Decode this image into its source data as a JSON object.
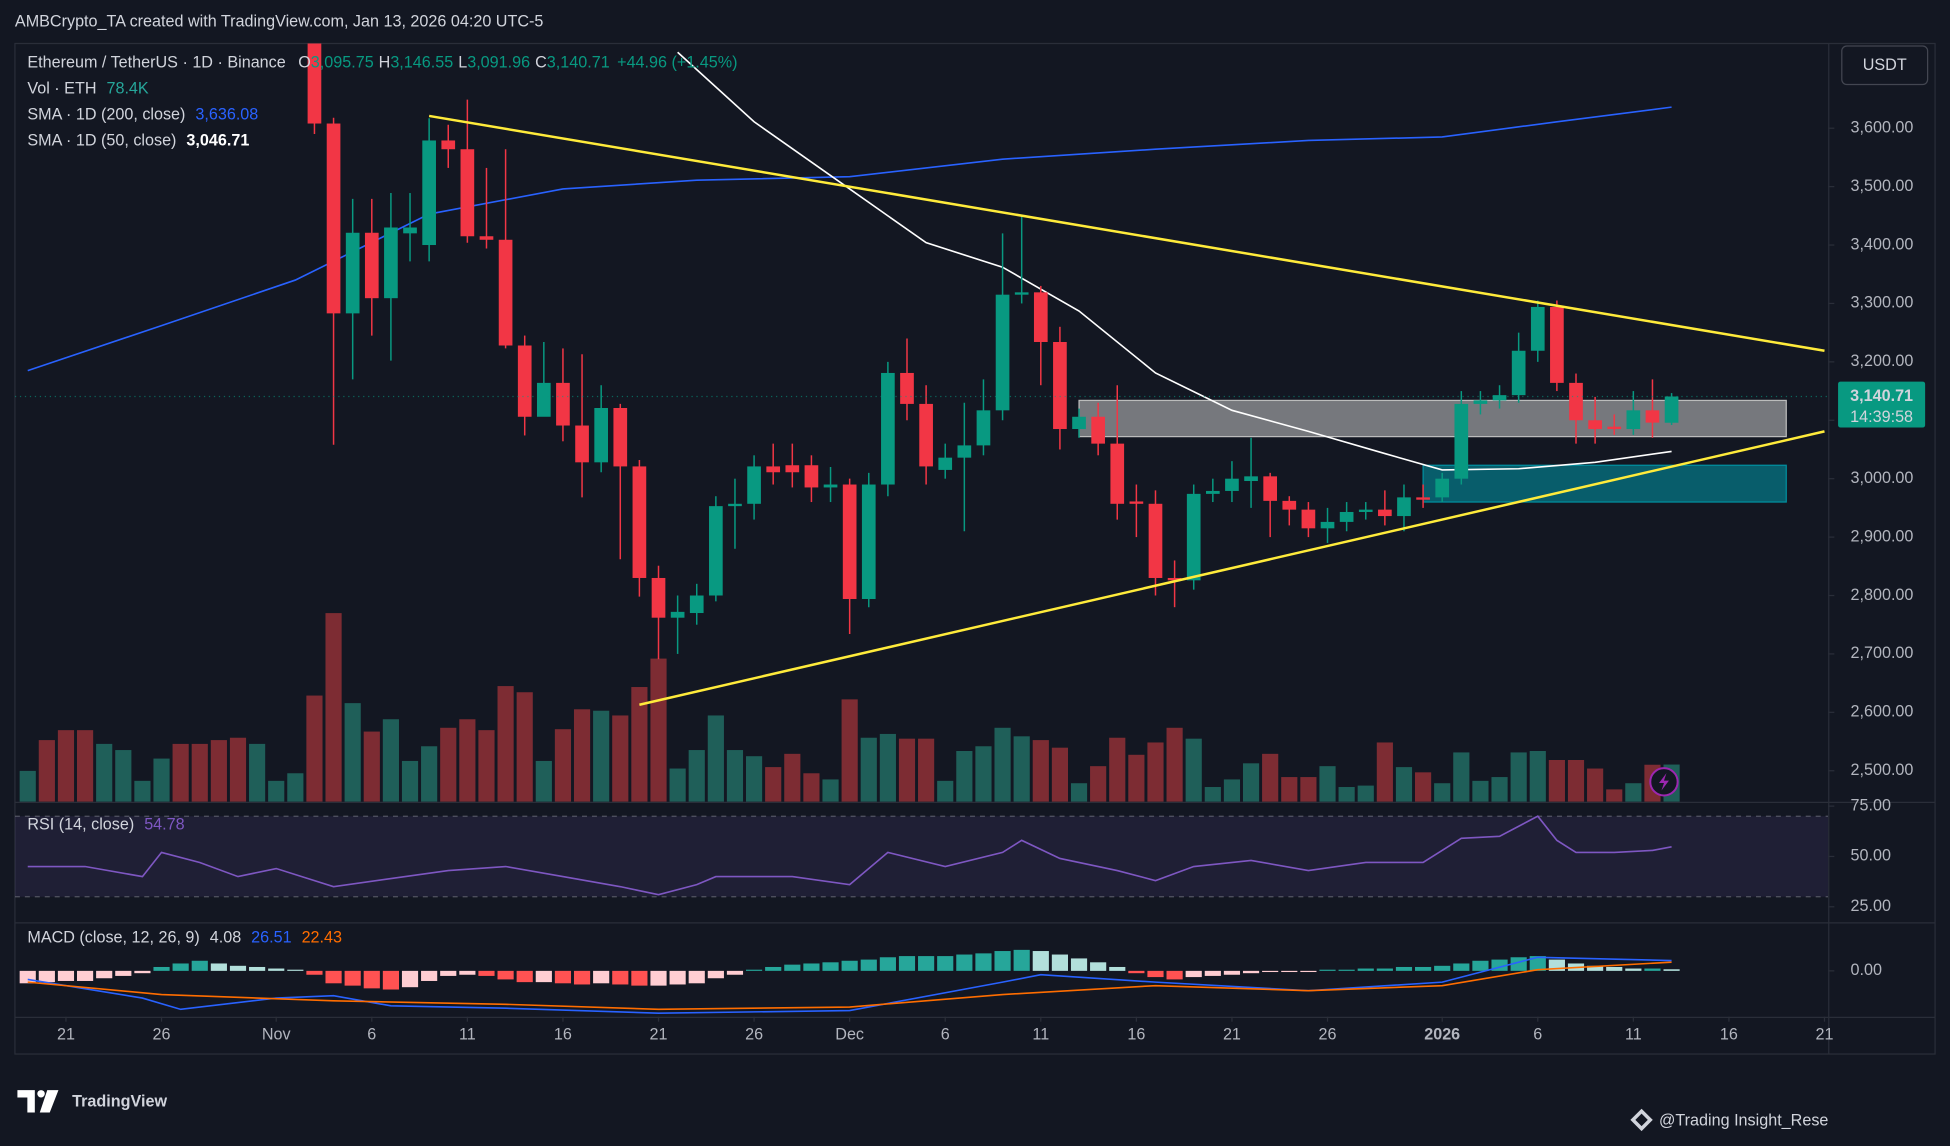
{
  "header": {
    "attribution": "AMBCrypto_TA created with TradingView.com, Jan 13, 2026 04:20 UTC-5"
  },
  "footer": {
    "logo": "TradingView",
    "credit": "@Trading Insight_Rese"
  },
  "chart_data": {
    "type": "candlestick",
    "currency": "USDT",
    "legend": {
      "symbol": "Ethereum / TetherUS · 1D · Binance",
      "ohlc": [
        {
          "key": "O",
          "label": "3,095.75"
        },
        {
          "key": "H",
          "label": "3,146.55"
        },
        {
          "key": "L",
          "label": "3,091.96"
        },
        {
          "key": "C",
          "label": "3,140.71"
        }
      ],
      "change": "+44.96 (+1.45%)",
      "countdown": "14:39:58"
    },
    "up_color": "#089981",
    "down_color": "#f23645",
    "ylim": [
      2447,
      3745
    ],
    "yticks": [
      {
        "value": 2500,
        "label": "2,500.00"
      },
      {
        "value": 2600,
        "label": "2,600.00"
      },
      {
        "value": 2700,
        "label": "2,700.00"
      },
      {
        "value": 2800,
        "label": "2,800.00"
      },
      {
        "value": 2900,
        "label": "2,900.00"
      },
      {
        "value": 3000,
        "label": "3,000.00"
      },
      {
        "value": 3100,
        "label": "3,100.00"
      },
      {
        "value": 3200,
        "label": "3,200.00"
      },
      {
        "value": 3300,
        "label": "3,300.00"
      },
      {
        "value": 3400,
        "label": "3,400.00"
      },
      {
        "value": 3500,
        "label": "3,500.00"
      },
      {
        "value": 3600,
        "label": "3,600.00"
      }
    ],
    "xticks": [
      {
        "value": "Oct 21",
        "label": "21"
      },
      {
        "value": "Oct 26",
        "label": "26"
      },
      {
        "value": "Nov 1",
        "label": "Nov"
      },
      {
        "value": "Nov 6",
        "label": "6"
      },
      {
        "value": "Nov 11",
        "label": "11"
      },
      {
        "value": "Nov 16",
        "label": "16"
      },
      {
        "value": "Nov 21",
        "label": "21"
      },
      {
        "value": "Nov 26",
        "label": "26"
      },
      {
        "value": "Dec 1",
        "label": "Dec"
      },
      {
        "value": "Dec 6",
        "label": "6"
      },
      {
        "value": "Dec 11",
        "label": "11"
      },
      {
        "value": "Dec 16",
        "label": "16"
      },
      {
        "value": "Dec 21",
        "label": "21"
      },
      {
        "value": "Dec 26",
        "label": "26"
      },
      {
        "value": "Jan 1",
        "label": "2026"
      },
      {
        "value": "Jan 6",
        "label": "6"
      },
      {
        "value": "Jan 11",
        "label": "11"
      },
      {
        "value": "Jan 16",
        "label": "16"
      },
      {
        "value": "Jan 21",
        "label": "21"
      }
    ],
    "grid": false,
    "dates": [
      "Oct 19",
      "Oct 20",
      "Oct 21",
      "Oct 22",
      "Oct 23",
      "Oct 24",
      "Oct 25",
      "Oct 26",
      "Oct 27",
      "Oct 28",
      "Oct 29",
      "Oct 30",
      "Oct 31",
      "Nov 1",
      "Nov 2",
      "Nov 3",
      "Nov 4",
      "Nov 5",
      "Nov 6",
      "Nov 7",
      "Nov 8",
      "Nov 9",
      "Nov 10",
      "Nov 11",
      "Nov 12",
      "Nov 13",
      "Nov 14",
      "Nov 15",
      "Nov 16",
      "Nov 17",
      "Nov 18",
      "Nov 19",
      "Nov 20",
      "Nov 21",
      "Nov 22",
      "Nov 23",
      "Nov 24",
      "Nov 25",
      "Nov 26",
      "Nov 27",
      "Nov 28",
      "Nov 29",
      "Nov 30",
      "Dec 1",
      "Dec 2",
      "Dec 3",
      "Dec 4",
      "Dec 5",
      "Dec 6",
      "Dec 7",
      "Dec 8",
      "Dec 9",
      "Dec 10",
      "Dec 11",
      "Dec 12",
      "Dec 13",
      "Dec 14",
      "Dec 15",
      "Dec 16",
      "Dec 17",
      "Dec 18",
      "Dec 19",
      "Dec 20",
      "Dec 21",
      "Dec 22",
      "Dec 23",
      "Dec 24",
      "Dec 25",
      "Dec 26",
      "Dec 27",
      "Dec 28",
      "Dec 29",
      "Dec 30",
      "Dec 31",
      "Jan 1",
      "Jan 2",
      "Jan 3",
      "Jan 4",
      "Jan 5",
      "Jan 6",
      "Jan 7",
      "Jan 8",
      "Jan 9",
      "Jan 10",
      "Jan 11",
      "Jan 12",
      "Jan 13"
    ],
    "open": [
      null,
      null,
      null,
      null,
      null,
      null,
      null,
      null,
      null,
      null,
      null,
      null,
      null,
      null,
      null,
      3906,
      3608,
      3283,
      3421,
      3309,
      3420,
      3400,
      3579,
      3564,
      3415,
      3409,
      3228,
      3106,
      3164,
      3091,
      3028,
      3121,
      3021,
      2830,
      2762,
      2770,
      2800,
      2953,
      2957,
      3021,
      3023,
      3023,
      2985,
      2990,
      2794,
      2990,
      3181,
      3128,
      3015,
      3036,
      3057,
      3117,
      3315,
      3319,
      3234,
      3085,
      3106,
      3060,
      2961,
      2957,
      2830,
      2826,
      2974,
      2979,
      2996,
      3004,
      2962,
      2947,
      2915,
      2926,
      2943,
      2947,
      2936,
      2968,
      2968,
      3000,
      3128,
      3134,
      3143,
      3219,
      3294,
      3164,
      3100,
      3089,
      3085,
      3117,
      3095.75
    ],
    "high": [
      null,
      null,
      null,
      null,
      null,
      null,
      null,
      null,
      null,
      null,
      null,
      null,
      null,
      null,
      null,
      3918,
      3618,
      3479,
      3479,
      3489,
      3489,
      3617,
      3606,
      3649,
      3532,
      3564,
      3245,
      3234,
      3223,
      3213,
      3160,
      3128,
      3032,
      2851,
      2800,
      2820,
      2970,
      3000,
      3040,
      3060,
      3060,
      3040,
      3020,
      3000,
      3010,
      3200,
      3240,
      3160,
      3060,
      3130,
      3170,
      3420,
      3450,
      3330,
      3260,
      3120,
      3130,
      3160,
      2990,
      2980,
      2860,
      2990,
      3000,
      3030,
      3070,
      3010,
      2970,
      2960,
      2950,
      2960,
      2960,
      2980,
      2990,
      2990,
      3010,
      3150,
      3150,
      3160,
      3250,
      3305,
      3305,
      3180,
      3140,
      3110,
      3150,
      3170,
      3146.55
    ],
    "low": [
      null,
      null,
      null,
      null,
      null,
      null,
      null,
      null,
      null,
      null,
      null,
      null,
      null,
      null,
      null,
      3590,
      3058,
      3170,
      3245,
      3202,
      3372,
      3372,
      3532,
      3404,
      3394,
      3223,
      3074,
      3115,
      3064,
      2968,
      3011,
      2862,
      2798,
      2691,
      2700,
      2750,
      2790,
      2880,
      2930,
      2990,
      2985,
      2960,
      2960,
      2734,
      2780,
      2970,
      3100,
      2990,
      3000,
      2910,
      3040,
      3100,
      3300,
      3160,
      3050,
      3070,
      3040,
      2930,
      2900,
      2800,
      2780,
      2810,
      2960,
      2960,
      2950,
      2900,
      2920,
      2900,
      2890,
      2910,
      2930,
      2920,
      2910,
      2950,
      2960,
      2990,
      3110,
      3120,
      3130,
      3200,
      3150,
      3060,
      3060,
      3075,
      3075,
      3070,
      3091.96
    ],
    "close": [
      null,
      null,
      null,
      null,
      null,
      null,
      null,
      null,
      null,
      null,
      null,
      null,
      null,
      null,
      null,
      3608,
      3283,
      3421,
      3309,
      3430,
      3430,
      3579,
      3564,
      3415,
      3409,
      3228,
      3106,
      3164,
      3091,
      3028,
      3121,
      3021,
      2830,
      2762,
      2772,
      2800,
      2953,
      2957,
      3021,
      3011,
      3011,
      2985,
      2990,
      2794,
      2990,
      3181,
      3128,
      3021,
      3036,
      3057,
      3117,
      3315,
      3319,
      3234,
      3085,
      3106,
      3060,
      2957,
      2957,
      2830,
      2826,
      2974,
      2979,
      3000,
      3004,
      2962,
      2947,
      2915,
      2926,
      2943,
      2947,
      2936,
      2968,
      2964,
      3000,
      3128,
      3134,
      3143,
      3219,
      3294,
      3164,
      3100,
      3085,
      3085,
      3117,
      3096,
      3140.71
    ],
    "volume": {
      "name": "Vol · ETH",
      "last_label": "78.4K",
      "ylim": [
        0,
        1600
      ],
      "up_color": "#1f5f59",
      "down_color": "#7d2c33",
      "values": [
        65,
        130,
        151,
        151,
        122,
        109,
        44,
        91,
        122,
        122,
        130,
        135,
        122,
        44,
        60,
        224,
        398,
        208,
        148,
        174,
        86,
        117,
        156,
        174,
        151,
        244,
        231,
        86,
        153,
        195,
        192,
        182,
        242,
        302,
        70,
        109,
        182,
        109,
        96,
        73,
        101,
        60,
        47,
        216,
        135,
        143,
        133,
        133,
        44,
        107,
        117,
        156,
        138,
        130,
        114,
        39,
        75,
        135,
        99,
        125,
        156,
        133,
        31,
        47,
        81,
        101,
        52,
        52,
        75,
        31,
        34,
        125,
        73,
        62,
        39,
        104,
        44,
        52,
        104,
        107,
        88,
        88,
        70,
        26,
        39,
        78,
        78.4
      ],
      "up": [
        true,
        false,
        false,
        false,
        true,
        true,
        true,
        true,
        false,
        false,
        false,
        false,
        true,
        true,
        true,
        false,
        false,
        true,
        false,
        true,
        true,
        true,
        false,
        false,
        false,
        false,
        false,
        true,
        false,
        false,
        true,
        false,
        false,
        false,
        true,
        true,
        true,
        true,
        true,
        false,
        false,
        false,
        true,
        false,
        true,
        true,
        false,
        false,
        true,
        true,
        true,
        true,
        true,
        false,
        false,
        true,
        false,
        false,
        false,
        false,
        false,
        true,
        true,
        true,
        true,
        false,
        false,
        false,
        true,
        true,
        true,
        false,
        true,
        false,
        true,
        true,
        true,
        true,
        true,
        true,
        false,
        false,
        false,
        false,
        true,
        false,
        true
      ]
    },
    "series": [
      {
        "name": "SMA · 1D (200, close)",
        "last_label": "3,636.08",
        "color": "#2962ff",
        "x": [
          "Oct 19",
          "Oct 26",
          "Nov 2",
          "Nov 9",
          "Nov 16",
          "Nov 23",
          "Dec 1",
          "Dec 9",
          "Dec 17",
          "Dec 25",
          "Jan 1",
          "Jan 7",
          "Jan 13"
        ],
        "values": [
          3185,
          3262,
          3340,
          3453,
          3496,
          3511,
          3517,
          3547,
          3564,
          3579,
          3585,
          3611,
          3636.08
        ]
      },
      {
        "name": "SMA · 1D (50, close)",
        "last_label": "3,046.71",
        "color": "#ffffff",
        "x": [
          "Nov 22",
          "Nov 26",
          "Dec 1",
          "Dec 5",
          "Dec 9",
          "Dec 13",
          "Dec 17",
          "Dec 21",
          "Dec 25",
          "Dec 29",
          "Jan 1",
          "Jan 5",
          "Jan 9",
          "Jan 13"
        ],
        "values": [
          3730,
          3611,
          3496,
          3404,
          3362,
          3287,
          3181,
          3117,
          3081,
          3043,
          3015,
          3017,
          3028,
          3046.71
        ]
      }
    ],
    "drawings": {
      "trendlines": [
        {
          "color": "#ffeb3b",
          "x": [
            "Nov 9",
            "Jan 21"
          ],
          "values": [
            3621,
            3219
          ]
        },
        {
          "color": "#ffeb3b",
          "x": [
            "Nov 20",
            "Jan 21"
          ],
          "values": [
            2613,
            3081
          ]
        }
      ],
      "zones": [
        {
          "color": "#c8c8c8",
          "x": [
            "Dec 13",
            "Jan 19"
          ],
          "values": [
            3072,
            3134
          ]
        },
        {
          "color": "#0097a7",
          "x": [
            "Dec 31",
            "Jan 19"
          ],
          "values": [
            2960,
            3023
          ]
        }
      ]
    },
    "rsi": {
      "name": "RSI (14, close)",
      "last_label": "54.78",
      "color": "#7e57c2",
      "ylim": [
        17.3,
        77.2
      ],
      "levels": [
        30,
        70
      ],
      "yticks": [
        {
          "value": 25,
          "label": "25.00"
        },
        {
          "value": 50,
          "label": "50.00"
        },
        {
          "value": 75,
          "label": "75.00"
        }
      ],
      "x": [
        "Oct 19",
        "Oct 22",
        "Oct 25",
        "Oct 26",
        "Oct 28",
        "Oct 30",
        "Nov 1",
        "Nov 4",
        "Nov 7",
        "Nov 10",
        "Nov 13",
        "Nov 16",
        "Nov 19",
        "Nov 21",
        "Nov 23",
        "Nov 24",
        "Nov 28",
        "Dec 1",
        "Dec 3",
        "Dec 6",
        "Dec 9",
        "Dec 10",
        "Dec 12",
        "Dec 15",
        "Dec 17",
        "Dec 19",
        "Dec 22",
        "Dec 25",
        "Dec 28",
        "Dec 31",
        "Jan 2",
        "Jan 4",
        "Jan 6",
        "Jan 7",
        "Jan 8",
        "Jan 10",
        "Jan 12",
        "Jan 13"
      ],
      "values": [
        45,
        45,
        40,
        52,
        47,
        40,
        44,
        35,
        39,
        43,
        45,
        40,
        35,
        31,
        36,
        40,
        40,
        36,
        52,
        45,
        52,
        58,
        49,
        43,
        38,
        45,
        48,
        43,
        47,
        47,
        59,
        60,
        70,
        58,
        52,
        52,
        53,
        54.78
      ]
    },
    "macd": {
      "name": "MACD (close, 12, 26, 9)",
      "ylim": [
        -118,
        125
      ],
      "yticks": [
        {
          "value": 0,
          "label": "0.00"
        }
      ],
      "histogram_colors": [
        "#26a69a",
        "#b2dfdb",
        "#ff5252",
        "#ffcdd2"
      ],
      "histogram": {
        "label": "4.08",
        "color": "#26a69a",
        "values": [
          -32,
          -29,
          -26,
          -26,
          -19,
          -13,
          -6,
          10,
          19,
          26,
          19,
          13,
          10,
          6,
          3,
          -10,
          -32,
          -38,
          -45,
          -48,
          -42,
          -26,
          -13,
          -10,
          -13,
          -22,
          -29,
          -29,
          -32,
          -35,
          -32,
          -35,
          -38,
          -38,
          -35,
          -32,
          -19,
          -10,
          3,
          10,
          16,
          19,
          22,
          26,
          29,
          35,
          38,
          38,
          38,
          42,
          45,
          51,
          54,
          51,
          42,
          32,
          22,
          10,
          -6,
          -16,
          -22,
          -16,
          -13,
          -10,
          -6,
          -3,
          -3,
          -3,
          3,
          3,
          6,
          6,
          10,
          10,
          13,
          19,
          26,
          29,
          35,
          38,
          29,
          19,
          13,
          10,
          6,
          6,
          4.08
        ]
      },
      "lines": [
        {
          "label": "26.51",
          "color": "#2962ff",
          "x": [
            "Oct 19",
            "Oct 25",
            "Oct 27",
            "Nov 1",
            "Nov 4",
            "Nov 7",
            "Nov 13",
            "Nov 21",
            "Dec 1",
            "Dec 9",
            "Dec 11",
            "Dec 17",
            "Dec 25",
            "Jan 1",
            "Jan 6",
            "Jan 13"
          ],
          "values": [
            -22,
            -70,
            -99,
            -70,
            -64,
            -90,
            -96,
            -109,
            -102,
            -29,
            -10,
            -29,
            -51,
            -29,
            35,
            26.51
          ]
        },
        {
          "label": "22.43",
          "color": "#ff6d00",
          "x": [
            "Oct 19",
            "Oct 26",
            "Nov 4",
            "Nov 13",
            "Nov 21",
            "Dec 1",
            "Dec 9",
            "Dec 17",
            "Dec 25",
            "Jan 1",
            "Jan 6",
            "Jan 13"
          ],
          "values": [
            -29,
            -61,
            -77,
            -86,
            -99,
            -93,
            -61,
            -38,
            -51,
            -38,
            3,
            22.43
          ]
        }
      ]
    }
  }
}
